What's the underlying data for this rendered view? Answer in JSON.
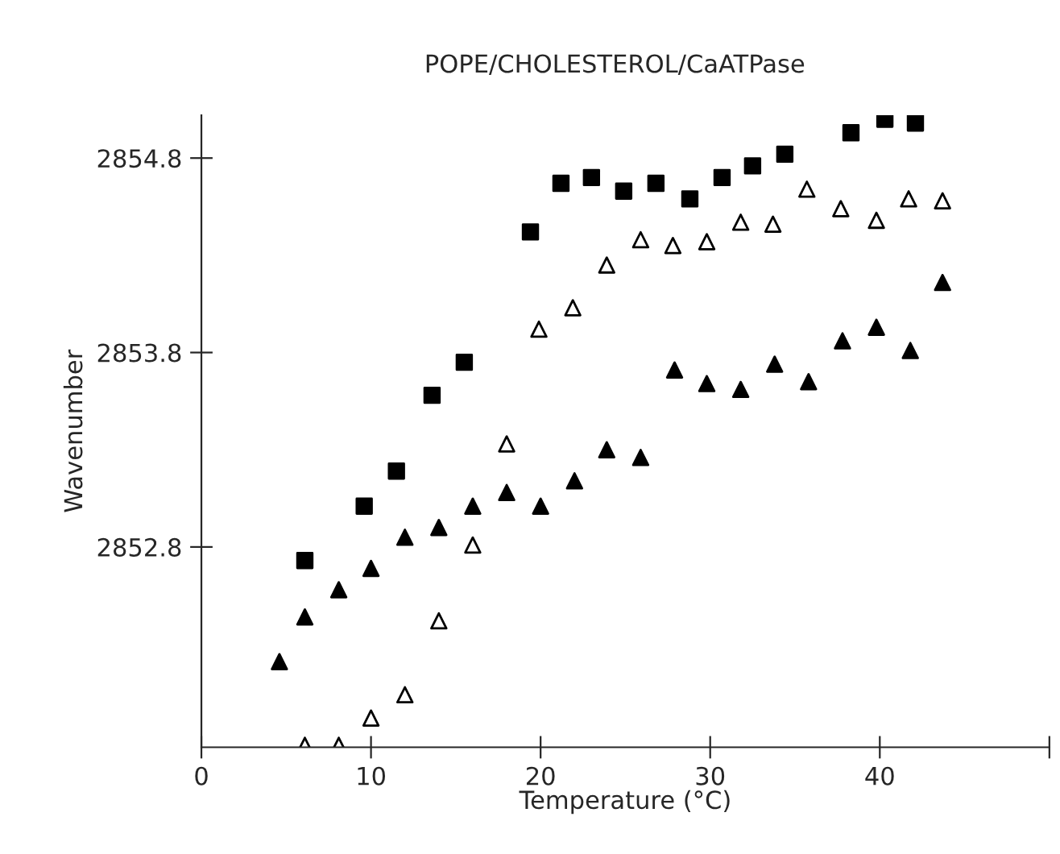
{
  "chart_data": {
    "type": "scatter",
    "title": "POPE/CHOLESTEROL/CaATPase",
    "xlabel": "Temperature (°C)",
    "ylabel": "Wavenumber",
    "xlim": [
      0,
      50
    ],
    "xticks": [
      0,
      10,
      20,
      30,
      40,
      {
        "value": 50,
        "label": null
      }
    ],
    "ylim": [
      2851.77,
      2855.02
    ],
    "yticks": [
      2852.8,
      2853.8,
      2854.8
    ],
    "grid": false,
    "series": [
      {
        "color": "#000000",
        "marker": "square",
        "x": [
          6.1,
          9.6,
          11.5,
          13.6,
          15.5,
          19.4,
          21.2,
          23.0,
          24.9,
          26.8,
          28.8,
          30.7,
          32.5,
          34.4,
          38.3,
          40.3,
          42.1
        ],
        "values": [
          2852.73,
          2853.01,
          2853.19,
          2853.58,
          2853.75,
          2854.42,
          2854.67,
          2854.7,
          2854.63,
          2854.67,
          2854.59,
          2854.7,
          2854.76,
          2854.82,
          2854.93,
          2855.0,
          2854.98
        ]
      },
      {
        "color": "#ffffff",
        "marker": "triangle",
        "x": [
          6.1,
          8.1,
          10.0,
          12.0,
          14.0,
          16.0,
          18.0,
          19.9,
          21.9,
          23.9,
          25.9,
          27.8,
          29.8,
          31.8,
          33.7,
          35.7,
          37.7,
          39.8,
          41.7,
          43.7
        ],
        "values": [
          2851.78,
          2851.78,
          2851.92,
          2852.04,
          2852.42,
          2852.81,
          2853.33,
          2853.92,
          2854.03,
          2854.25,
          2854.38,
          2854.35,
          2854.37,
          2854.47,
          2854.46,
          2854.64,
          2854.54,
          2854.48,
          2854.59,
          2854.58
        ]
      },
      {
        "color": "#000000",
        "marker": "triangle",
        "x": [
          4.6,
          6.1,
          8.1,
          10.0,
          12.0,
          14.0,
          16.0,
          18.0,
          20.0,
          22.0,
          23.9,
          25.9,
          27.9,
          29.8,
          31.8,
          33.8,
          35.8,
          37.8,
          39.8,
          41.8,
          43.7
        ],
        "values": [
          2852.21,
          2852.44,
          2852.58,
          2852.69,
          2852.85,
          2852.9,
          2853.01,
          2853.08,
          2853.01,
          2853.14,
          2853.3,
          2853.26,
          2853.71,
          2853.64,
          2853.61,
          2853.74,
          2853.65,
          2853.86,
          2853.93,
          2853.81,
          2854.16
        ]
      }
    ]
  }
}
